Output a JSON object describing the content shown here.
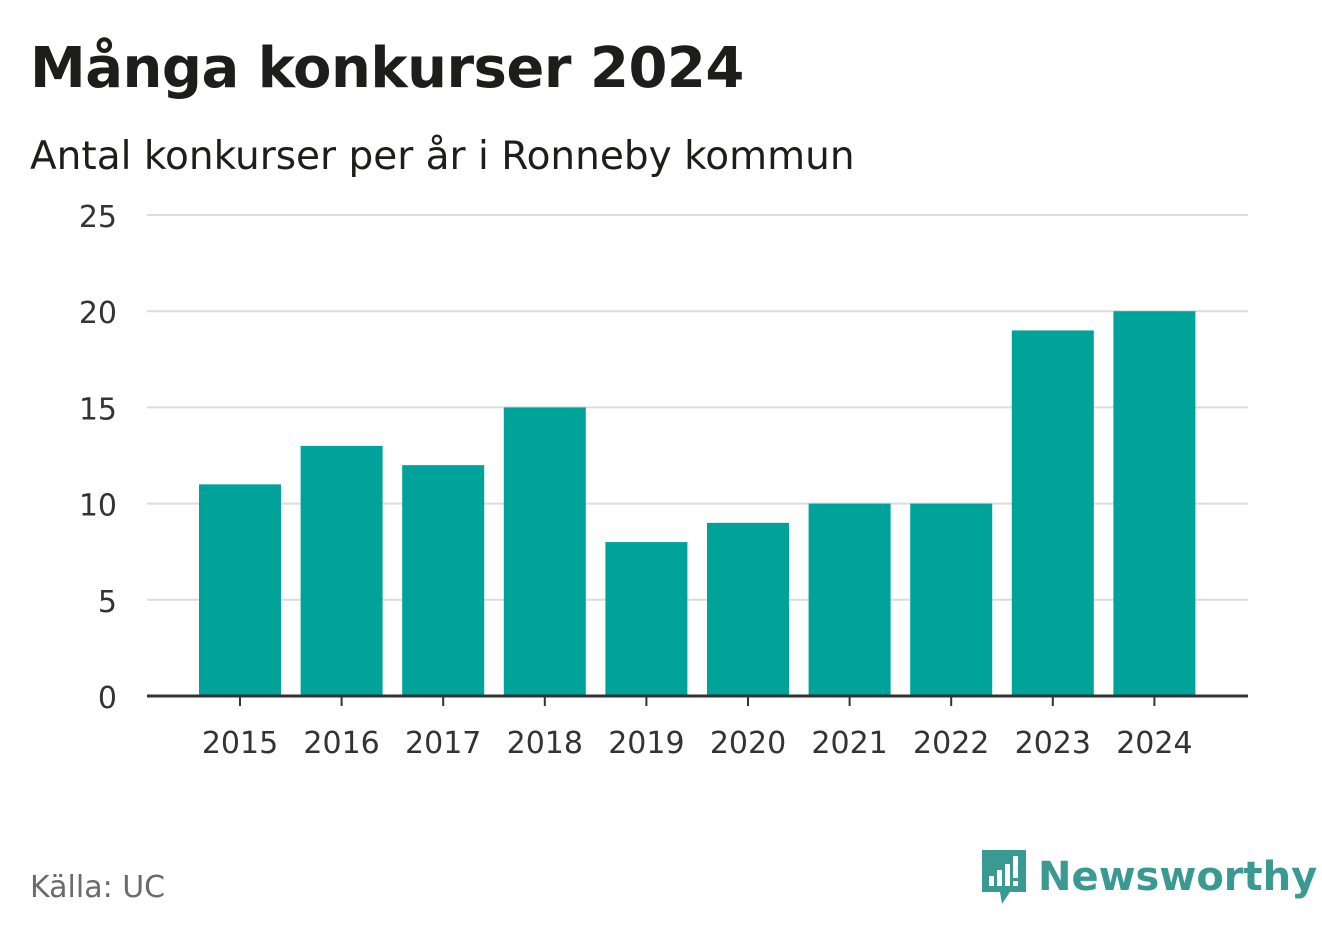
{
  "title": "Många konkurser 2024",
  "subtitle": "Antal konkurser per år i Ronneby kommun",
  "source": "Källa: UC",
  "brand": {
    "name": "Newsworthy",
    "icon": "newsworthy-logo-icon",
    "color": "#3a9a91"
  },
  "colors": {
    "bar": "#00a39a",
    "grid": "#dcdcdc",
    "axis": "#333333",
    "text": "#333333"
  },
  "chart_data": {
    "type": "bar",
    "categories": [
      "2015",
      "2016",
      "2017",
      "2018",
      "2019",
      "2020",
      "2021",
      "2022",
      "2023",
      "2024"
    ],
    "values": [
      11,
      13,
      12,
      15,
      8,
      9,
      10,
      10,
      19,
      20
    ],
    "ylim": [
      0,
      25
    ],
    "yticks": [
      0,
      5,
      10,
      15,
      20,
      25
    ],
    "grid": true,
    "legend": "none"
  }
}
